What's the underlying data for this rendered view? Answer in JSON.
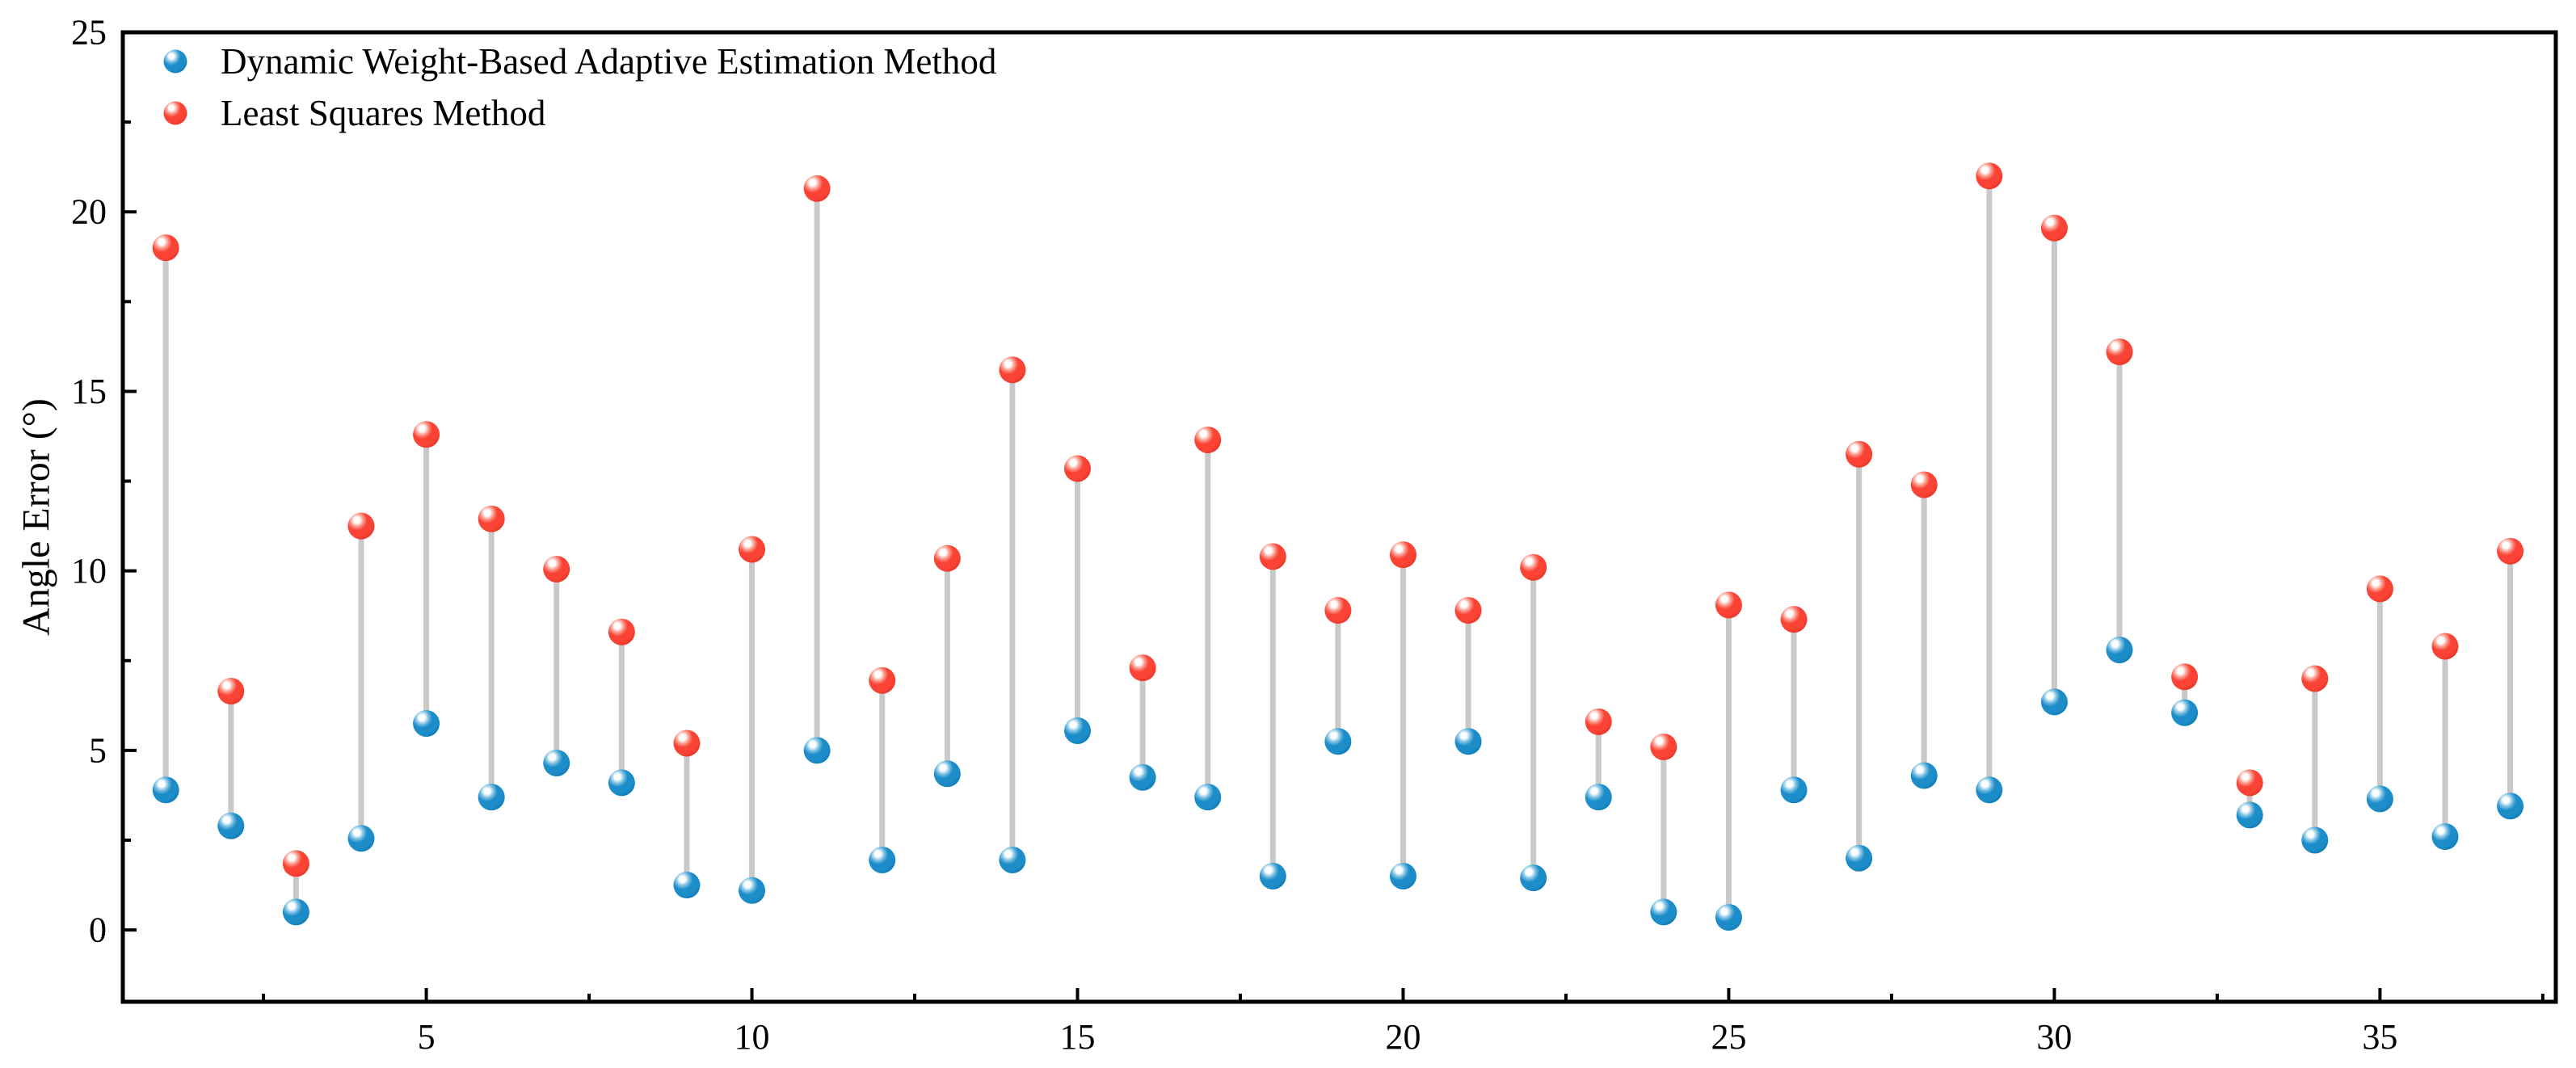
{
  "figure": {
    "background": "#ffffff",
    "ylabel": "Angle Error (°)"
  },
  "legend": {
    "position": "top-left",
    "items": [
      {
        "label": "Dynamic Weight-Based Adaptive Estimation Method",
        "series": "dwae",
        "color": "#1C8DC9"
      },
      {
        "label": "Least Squares Method",
        "series": "lsq",
        "color": "#FA4334"
      }
    ]
  },
  "colors": {
    "blue_marker": "#1C8DC9",
    "blue_marker_edge": "#0F77AE",
    "blue_marker_halo": "#7FC2E4",
    "red_marker": "#FA4334",
    "red_marker_edge": "#E13527",
    "red_marker_halo": "#FC9B8E",
    "connector": "#C9C9C9",
    "axis": "#000000"
  },
  "chart_data": {
    "type": "scatter",
    "subtype": "lollipop-pair",
    "title": "",
    "xlabel": "",
    "ylabel": "Angle Error (°)",
    "xlim": [
      0.34,
      37.7
    ],
    "ylim": [
      -2,
      25
    ],
    "grid": false,
    "x_major_ticks": [
      5,
      10,
      15,
      20,
      25,
      30,
      35
    ],
    "x_minor_ticks": [
      2.5,
      7.5,
      12.5,
      17.5,
      22.5,
      27.5,
      32.5,
      37.5
    ],
    "y_major_ticks": [
      0,
      5,
      10,
      15,
      20,
      25
    ],
    "y_minor_ticks": [
      2.5,
      7.5,
      12.5,
      17.5,
      22.5
    ],
    "x": [
      1,
      2,
      3,
      4,
      5,
      6,
      7,
      8,
      9,
      10,
      11,
      12,
      13,
      14,
      15,
      16,
      17,
      18,
      19,
      20,
      21,
      22,
      23,
      24,
      25,
      26,
      27,
      28,
      29,
      30,
      31,
      32,
      33,
      34,
      35,
      36,
      37
    ],
    "series": [
      {
        "name": "Dynamic Weight-Based Adaptive Estimation Method",
        "color": "#1C8DC9",
        "values": [
          3.9,
          2.9,
          0.5,
          2.55,
          5.75,
          3.7,
          4.65,
          4.1,
          1.25,
          1.1,
          5.0,
          1.95,
          4.35,
          1.95,
          5.55,
          4.25,
          3.7,
          1.5,
          5.25,
          1.5,
          5.25,
          1.45,
          3.7,
          0.5,
          0.35,
          3.9,
          2.0,
          4.3,
          3.9,
          6.35,
          7.8,
          6.05,
          3.2,
          2.5,
          3.65,
          2.6,
          3.45
        ]
      },
      {
        "name": "Least Squares Method",
        "color": "#FA4334",
        "values": [
          19.0,
          6.65,
          1.85,
          11.25,
          13.8,
          11.45,
          10.05,
          8.3,
          5.2,
          10.6,
          20.65,
          6.95,
          10.35,
          15.6,
          12.85,
          7.3,
          13.65,
          10.4,
          8.9,
          10.45,
          8.9,
          10.1,
          5.8,
          5.1,
          9.05,
          8.65,
          13.25,
          12.4,
          21.0,
          19.55,
          16.1,
          7.05,
          4.1,
          7.0,
          9.5,
          7.9,
          10.55
        ]
      }
    ],
    "connectors": true,
    "legend_position": "top-left"
  }
}
